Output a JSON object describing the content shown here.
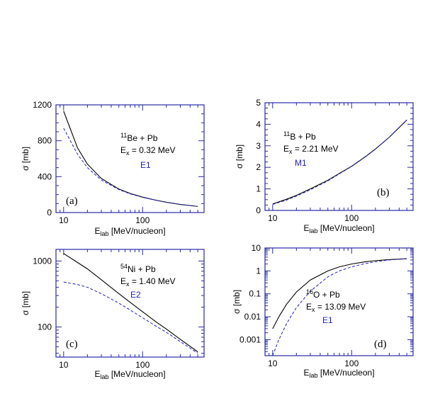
{
  "chart_data": [
    {
      "type": "line",
      "panel_label": "(a)",
      "ylabel_symbol": "σ",
      "ylabel_unit": "[mb]",
      "xlabel_sym": "E",
      "xlabel_sub": "lab",
      "xlabel_unit": "[MeV/nucleon]",
      "xscale": "log",
      "xlim": [
        8,
        600
      ],
      "xticks": [
        10,
        100
      ],
      "yscale": "linear",
      "ylim": [
        0,
        1200
      ],
      "yticks": [
        0,
        400,
        800,
        1200
      ],
      "annotation": {
        "pre": "",
        "sup": "11",
        "reaction": "Be + Pb",
        "ex_sym": "E",
        "ex_sub": "x",
        "ex_val": "= 0.32 MeV",
        "mode": "E1"
      },
      "series": [
        {
          "style": "solid",
          "x": [
            10,
            15,
            20,
            30,
            50,
            70,
            100,
            150,
            200,
            300,
            500
          ],
          "y": [
            1130,
            720,
            540,
            380,
            262,
            212,
            172,
            136,
            115,
            90,
            68
          ]
        },
        {
          "style": "dashed",
          "x": [
            10,
            15,
            20,
            30,
            50,
            70,
            100,
            150,
            200,
            300,
            500
          ],
          "y": [
            940,
            650,
            500,
            362,
            256,
            208,
            170,
            135,
            114,
            90,
            68
          ]
        }
      ]
    },
    {
      "type": "line",
      "panel_label": "(b)",
      "ylabel_symbol": "σ",
      "ylabel_unit": "[mb]",
      "xlabel_sym": "E",
      "xlabel_sub": "lab",
      "xlabel_unit": "[MeV/nucleon]",
      "xscale": "log",
      "xlim": [
        8,
        600
      ],
      "xticks": [
        10,
        100
      ],
      "yscale": "linear",
      "ylim": [
        0,
        5
      ],
      "yticks": [
        0,
        1,
        2,
        3,
        4,
        5
      ],
      "annotation": {
        "pre": "",
        "sup": "11",
        "reaction": "B + Pb",
        "ex_sym": "E",
        "ex_sub": "x",
        "ex_val": "= 2.21 MeV",
        "mode": "M1"
      },
      "series": [
        {
          "style": "solid",
          "x": [
            10,
            15,
            20,
            30,
            50,
            70,
            100,
            150,
            200,
            300,
            500
          ],
          "y": [
            0.3,
            0.52,
            0.7,
            1.0,
            1.4,
            1.72,
            2.05,
            2.5,
            2.85,
            3.4,
            4.2
          ]
        },
        {
          "style": "dashed",
          "x": [
            10,
            15,
            20,
            30,
            50,
            70,
            100,
            150,
            200,
            300,
            500
          ],
          "y": [
            0.28,
            0.48,
            0.66,
            0.96,
            1.37,
            1.7,
            2.04,
            2.49,
            2.84,
            3.4,
            4.2
          ]
        }
      ]
    },
    {
      "type": "line",
      "panel_label": "(c)",
      "ylabel_symbol": "σ",
      "ylabel_unit": "[mb]",
      "xlabel_sym": "E",
      "xlabel_sub": "lab",
      "xlabel_unit": "[MeV/nucleon]",
      "xscale": "log",
      "xlim": [
        8,
        600
      ],
      "xticks": [
        10,
        100
      ],
      "yscale": "log",
      "ylim": [
        35,
        1500
      ],
      "yticks": [
        100,
        1000
      ],
      "annotation": {
        "pre": "",
        "sup": "54",
        "reaction": "Ni + Pb",
        "ex_sym": "E",
        "ex_sub": "x",
        "ex_val": "= 1.40 MeV",
        "mode": "E2"
      },
      "series": [
        {
          "style": "solid",
          "x": [
            10,
            15,
            20,
            30,
            50,
            70,
            100,
            150,
            200,
            300,
            500
          ],
          "y": [
            1300,
            950,
            760,
            520,
            320,
            235,
            170,
            118,
            93,
            65,
            42
          ]
        },
        {
          "style": "dashed",
          "x": [
            10,
            15,
            20,
            30,
            50,
            70,
            100,
            150,
            200,
            300,
            500
          ],
          "y": [
            480,
            440,
            400,
            320,
            230,
            180,
            138,
            102,
            83,
            60,
            40
          ]
        }
      ]
    },
    {
      "type": "line",
      "panel_label": "(d)",
      "ylabel_symbol": "σ",
      "ylabel_unit": "[mb]",
      "xlabel_sym": "E",
      "xlabel_sub": "lab",
      "xlabel_unit": "[MeV/nucleon]",
      "xscale": "log",
      "xlim": [
        8,
        600
      ],
      "xticks": [
        10,
        100
      ],
      "yscale": "log",
      "ylim": [
        0.0002,
        10
      ],
      "yticks": [
        0.001,
        0.01,
        0.1,
        1,
        10
      ],
      "yticklabels": [
        "0.001",
        "0.01",
        "0.1",
        "1",
        "10"
      ],
      "annotation": {
        "pre": "",
        "sup": "16",
        "reaction": "O + Pb",
        "ex_sym": "E",
        "ex_sub": "x",
        "ex_val": "= 13.09 MeV",
        "mode": "E1"
      },
      "series": [
        {
          "style": "solid",
          "x": [
            10,
            12,
            15,
            20,
            30,
            50,
            70,
            100,
            150,
            200,
            300,
            500
          ],
          "y": [
            0.003,
            0.01,
            0.035,
            0.12,
            0.4,
            1.0,
            1.5,
            2.0,
            2.5,
            2.8,
            3.1,
            3.4
          ]
        },
        {
          "style": "dashed",
          "x": [
            10,
            12,
            15,
            20,
            30,
            50,
            70,
            100,
            150,
            200,
            300,
            500
          ],
          "y": [
            0.0002,
            0.001,
            0.005,
            0.025,
            0.13,
            0.55,
            1.0,
            1.5,
            2.1,
            2.5,
            3.0,
            3.4
          ]
        }
      ]
    }
  ]
}
